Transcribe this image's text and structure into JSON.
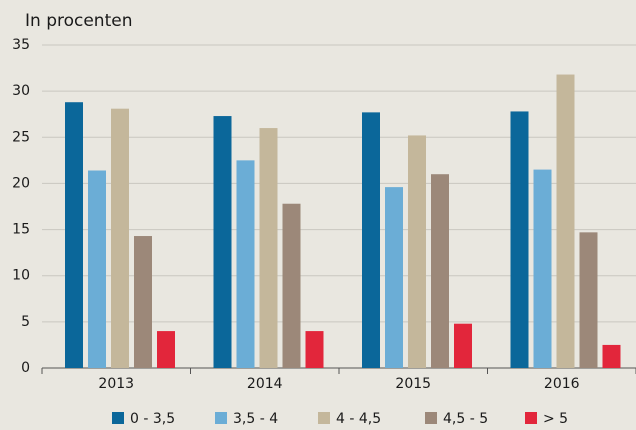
{
  "chart_data": {
    "type": "bar",
    "title": "In procenten",
    "categories": [
      "2013",
      "2014",
      "2015",
      "2016"
    ],
    "series": [
      {
        "name": "0 - 3,5",
        "color": "#0b679a",
        "values": [
          28.8,
          27.3,
          27.7,
          27.8
        ]
      },
      {
        "name": "3,5 - 4",
        "color": "#6badd6",
        "values": [
          21.4,
          22.5,
          19.6,
          21.5
        ]
      },
      {
        "name": "4 - 4,5",
        "color": "#c4b79b",
        "values": [
          28.1,
          26.0,
          25.2,
          31.8
        ]
      },
      {
        "name": "4,5 - 5",
        "color": "#9c8879",
        "values": [
          14.3,
          17.8,
          21.0,
          14.7
        ]
      },
      {
        "name": "> 5",
        "color": "#e2263b",
        "values": [
          4.0,
          4.0,
          4.8,
          2.5
        ]
      }
    ],
    "ylim": [
      0,
      35
    ],
    "yticks": [
      0,
      5,
      10,
      15,
      20,
      25,
      30,
      35
    ],
    "grid": true
  }
}
